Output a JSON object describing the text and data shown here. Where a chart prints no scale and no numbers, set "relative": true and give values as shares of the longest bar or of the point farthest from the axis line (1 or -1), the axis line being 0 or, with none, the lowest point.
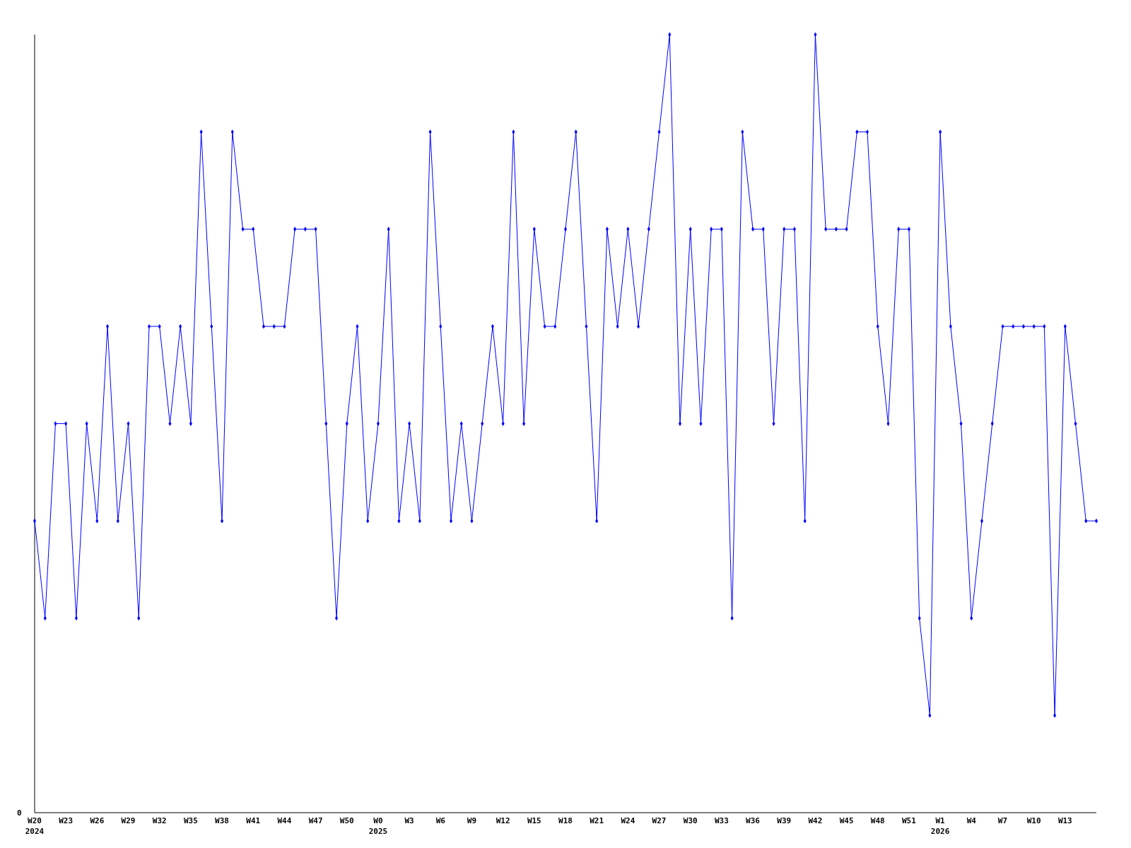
{
  "chart_data": {
    "type": "line",
    "relative": true,
    "marker": "diamond",
    "line_style": "solid",
    "annotations": [
      "0"
    ],
    "categories": [
      "W20\n2024",
      null,
      null,
      "W23",
      null,
      null,
      "W26",
      null,
      null,
      "W29",
      null,
      null,
      "W32",
      null,
      null,
      "W35",
      null,
      null,
      "W38",
      null,
      null,
      "W41",
      null,
      null,
      "W44",
      null,
      null,
      "W47",
      null,
      null,
      "W50",
      null,
      null,
      "W0\n2025",
      null,
      null,
      "W3",
      null,
      null,
      "W6",
      null,
      null,
      "W9",
      null,
      null,
      "W12",
      null,
      null,
      "W15",
      null,
      null,
      "W18",
      null,
      null,
      "W21",
      null,
      null,
      "W24",
      null,
      null,
      "W27",
      null,
      null,
      "W30",
      null,
      null,
      "W33",
      null,
      null,
      "W36",
      null,
      null,
      "W39",
      null,
      null,
      "W42",
      null,
      null,
      "W45",
      null,
      null,
      "W48",
      null,
      null,
      "W51",
      null,
      null,
      "W1\n2026",
      null,
      null,
      "W4",
      null,
      null,
      "W7",
      null,
      null,
      "W10",
      null,
      null,
      "W13",
      null,
      null,
      null
    ],
    "series": [
      {
        "color": "#0000ff",
        "values": [
          0.375,
          0.25,
          0.5,
          0.5,
          0.25,
          0.5,
          0.375,
          0.625,
          0.375,
          0.5,
          0.25,
          0.625,
          0.625,
          0.5,
          0.625,
          0.5,
          0.875,
          0.625,
          0.375,
          0.875,
          0.75,
          0.75,
          0.625,
          0.625,
          0.625,
          0.75,
          0.75,
          0.75,
          0.5,
          0.25,
          0.5,
          0.625,
          0.375,
          0.5,
          0.75,
          0.375,
          0.5,
          0.375,
          0.875,
          0.625,
          0.375,
          0.5,
          0.375,
          0.5,
          0.625,
          0.5,
          0.875,
          0.5,
          0.75,
          0.625,
          0.625,
          0.75,
          0.875,
          0.625,
          0.375,
          0.75,
          0.625,
          0.75,
          0.625,
          0.75,
          0.875,
          1,
          0.5,
          0.75,
          0.5,
          0.75,
          0.75,
          0.25,
          0.875,
          0.75,
          0.75,
          0.5,
          0.75,
          0.75,
          0.375,
          1,
          0.75,
          0.75,
          0.75,
          0.875,
          0.875,
          0.625,
          0.5,
          0.75,
          0.75,
          0.25,
          0.125,
          0.875,
          0.625,
          0.5,
          0.25,
          0.375,
          0.5,
          0.625,
          0.625,
          0.625,
          0.625,
          0.625,
          0.125,
          0.625,
          0.5,
          0.375,
          0.375
        ]
      }
    ]
  }
}
